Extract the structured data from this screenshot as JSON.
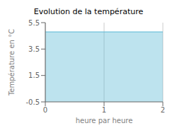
{
  "chart_data": {
    "type": "area",
    "title": "Evolution de la température",
    "xlabel": "heure par heure",
    "ylabel": "Température en °C",
    "x": [
      0,
      2
    ],
    "series": [
      {
        "color": "#5bb8d4",
        "values": [
          4.8,
          4.8
        ]
      }
    ],
    "xlim": [
      0,
      2
    ],
    "ylim": [
      -0.5,
      5.5
    ],
    "xticks": [
      0,
      1,
      2
    ],
    "yticks": [
      -0.5,
      1.5,
      3.5,
      5.5
    ],
    "grid": "x"
  }
}
